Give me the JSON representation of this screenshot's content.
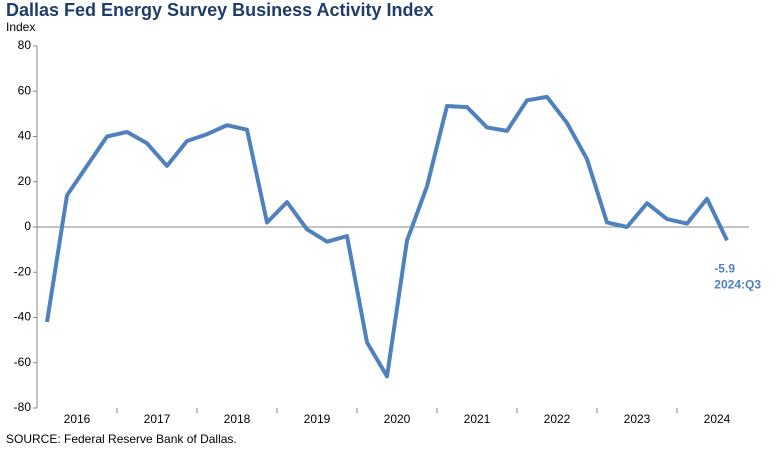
{
  "chart_data": {
    "type": "line",
    "title": "Dallas Fed Energy Survey Business Activity Index",
    "y_label": "Index",
    "source": "SOURCE:  Federal Reserve  Bank  of Dallas.",
    "categories": [
      null,
      "2016",
      null,
      null,
      null,
      "2017",
      null,
      null,
      null,
      "2018",
      null,
      null,
      null,
      "2019",
      null,
      null,
      null,
      "2020",
      null,
      null,
      null,
      "2021",
      null,
      null,
      null,
      "2022",
      null,
      null,
      null,
      "2023",
      null,
      null,
      null,
      "2024",
      null
    ],
    "series": [
      {
        "name": "Business Activity Index",
        "color": "#4f81bd",
        "values": [
          -42,
          14,
          27,
          40,
          42,
          37,
          27,
          38,
          41,
          45,
          43,
          2,
          11,
          -1,
          -6.5,
          -4,
          -51,
          -66,
          -6,
          18,
          53.5,
          53,
          44,
          42.5,
          56,
          57.5,
          46,
          30,
          2,
          0,
          10.5,
          3.5,
          1.5,
          12.5,
          -5.9
        ]
      }
    ],
    "annotation": "2024:Q3",
    "ylim": [
      -80,
      80
    ],
    "yticks": [
      -80,
      -60,
      -40,
      -20,
      0,
      20,
      40,
      60,
      80
    ]
  }
}
